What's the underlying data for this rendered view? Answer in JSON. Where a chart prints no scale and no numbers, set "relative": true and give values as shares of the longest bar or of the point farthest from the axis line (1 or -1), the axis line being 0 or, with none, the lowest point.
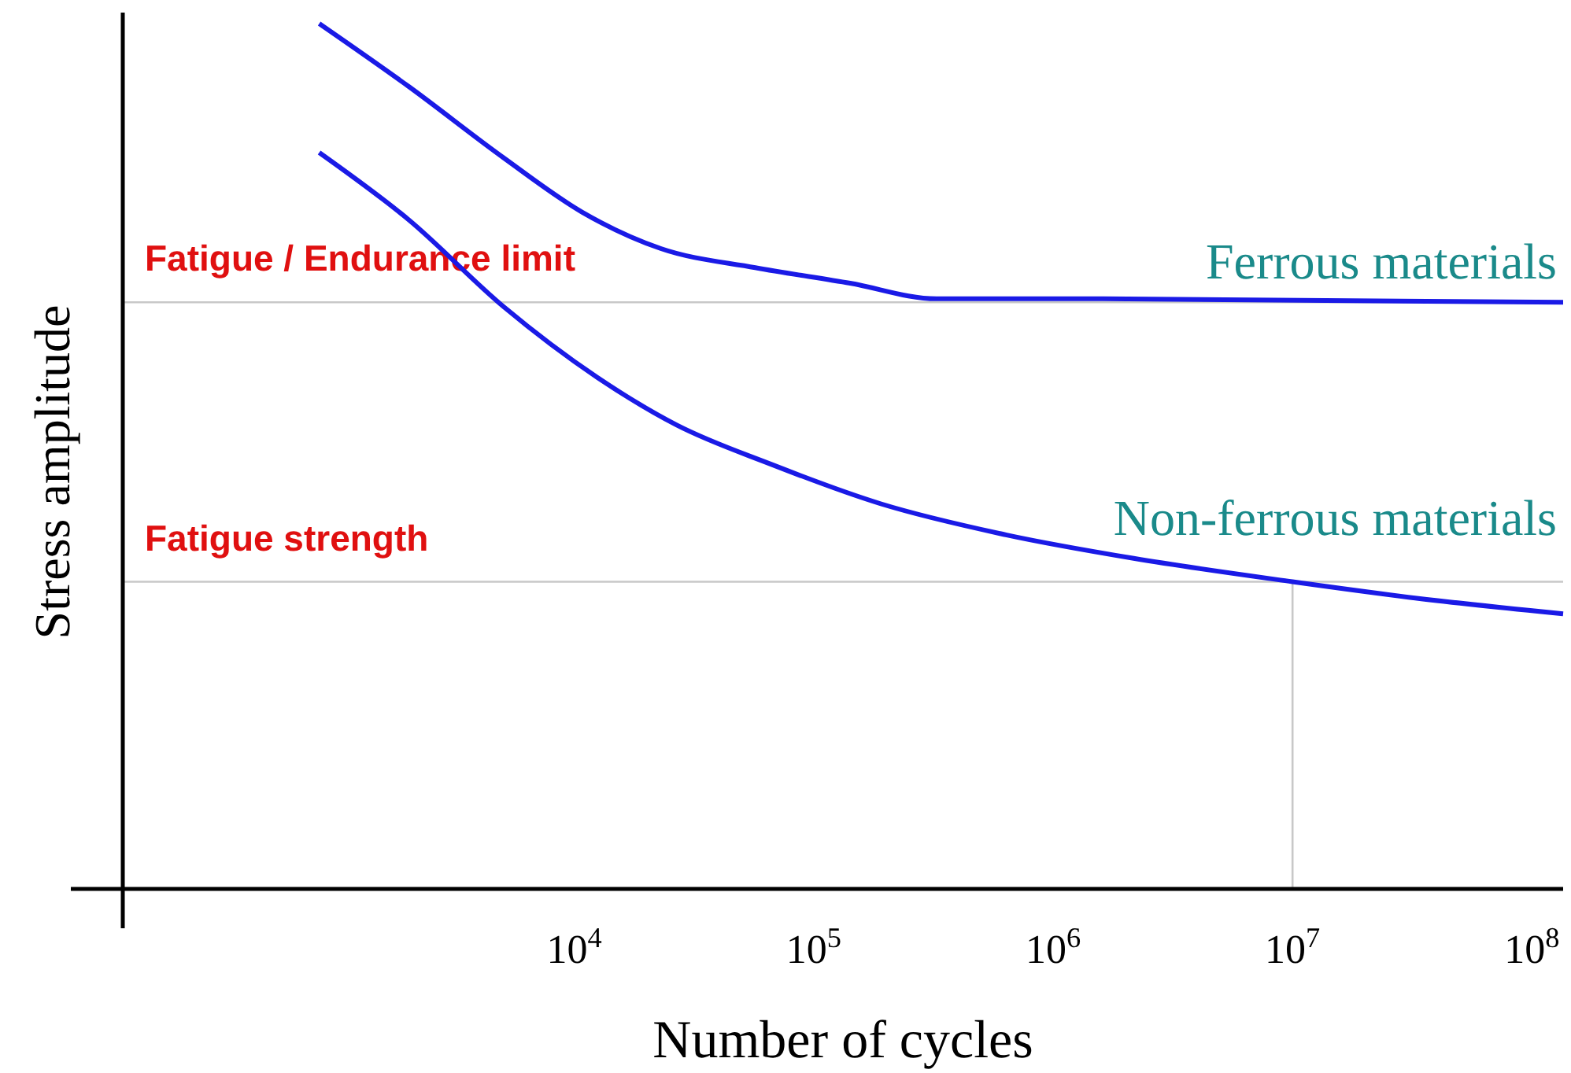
{
  "chart_data": {
    "type": "line",
    "relative": true,
    "xlabel": "Number of cycles",
    "ylabel": "Stress amplitude",
    "log": "x",
    "xlim": [
      130,
      135000000
    ],
    "xticks": [
      {
        "value": 10000,
        "label": "10$^{4}$"
      },
      {
        "value": 100000,
        "label": "10$^{5}$"
      },
      {
        "value": 1000000,
        "label": "10$^{6}$"
      },
      {
        "value": 10000000,
        "label": "10$^{7}$"
      },
      {
        "value": 100000000,
        "label": "10$^{8}$"
      }
    ],
    "grid": false,
    "legend": false,
    "marker": "none",
    "line_style": "solid",
    "series": [
      {
        "name": "Ferrous materials",
        "color": "#1a1ae6",
        "x": [
          860,
          2040,
          5060,
          10800,
          23000,
          57000,
          142000,
          326000,
          1600000,
          135000000
        ],
        "values": [
          1,
          0.927,
          0.845,
          0.782,
          0.74,
          0.718,
          0.7,
          0.682,
          0.682,
          0.678
        ]
      },
      {
        "name": "Non-ferrous materials",
        "color": "#1a1ae6",
        "x": [
          860,
          2040,
          5060,
          12500,
          26800,
          66000,
          191000,
          640000,
          2170000,
          10000000,
          33000000,
          135000000
        ],
        "values": [
          0.851,
          0.773,
          0.673,
          0.591,
          0.536,
          0.491,
          0.445,
          0.409,
          0.382,
          0.355,
          0.336,
          0.318
        ]
      }
    ],
    "ref_lines": [
      {
        "axis": "y",
        "value": 0.678,
        "label": "Fatigue / Endurance limit",
        "color": "#c8c8c8"
      },
      {
        "axis": "y",
        "value": 0.355,
        "label": "Fatigue strength",
        "color": "#c8c8c8"
      },
      {
        "axis": "x",
        "value": 10000000,
        "color": "#c8c8c8"
      }
    ]
  }
}
